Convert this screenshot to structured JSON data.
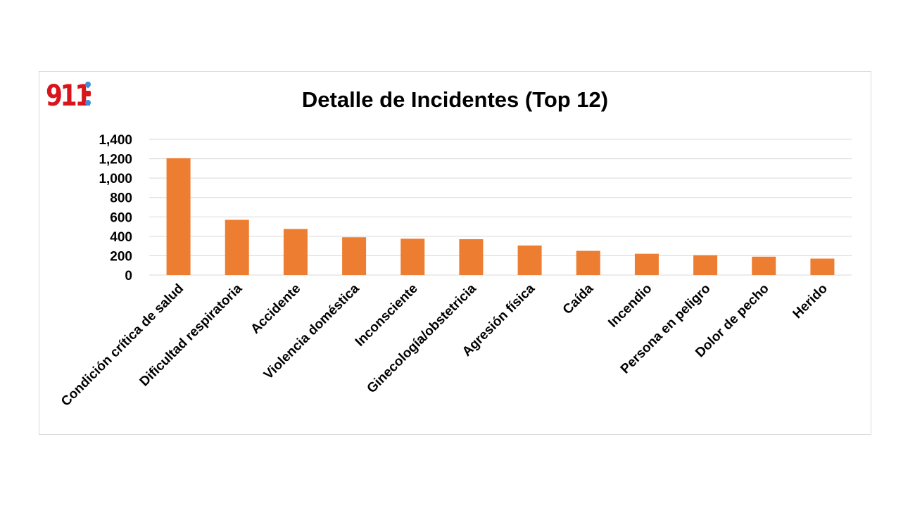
{
  "logo": {
    "text": "911",
    "icons": [
      "water-drop-icon",
      "ambulance-icon",
      "snowflake-icon"
    ],
    "colors": {
      "text": "#d9141c",
      "water": "#3a8fd8",
      "ambulance": "#d9141c",
      "snow": "#3a8fd8"
    }
  },
  "chart_data": {
    "type": "bar",
    "title": "Detalle de Incidentes (Top 12)",
    "xlabel": "",
    "ylabel": "",
    "categories": [
      "Condición crítica de salud",
      "Dificultad respiratoria",
      "Accidente",
      "Violencia doméstica",
      "Inconsciente",
      "Ginecología/obstetricia",
      "Agresión física",
      "Caída",
      "Incendio",
      "Persona en peligro",
      "Dolor de pecho",
      "Herido"
    ],
    "values": [
      1205,
      570,
      475,
      390,
      375,
      370,
      305,
      250,
      220,
      205,
      190,
      170
    ],
    "ylim": [
      0,
      1400
    ],
    "yticks": [
      0,
      200,
      400,
      600,
      800,
      1000,
      1200,
      1400
    ],
    "ytick_labels": [
      "0",
      "200",
      "400",
      "600",
      "800",
      "1,000",
      "1,200",
      "1,400"
    ],
    "grid": true,
    "legend": "none",
    "bar_color": "#ed7d31",
    "grid_color": "#d9d9d9"
  }
}
